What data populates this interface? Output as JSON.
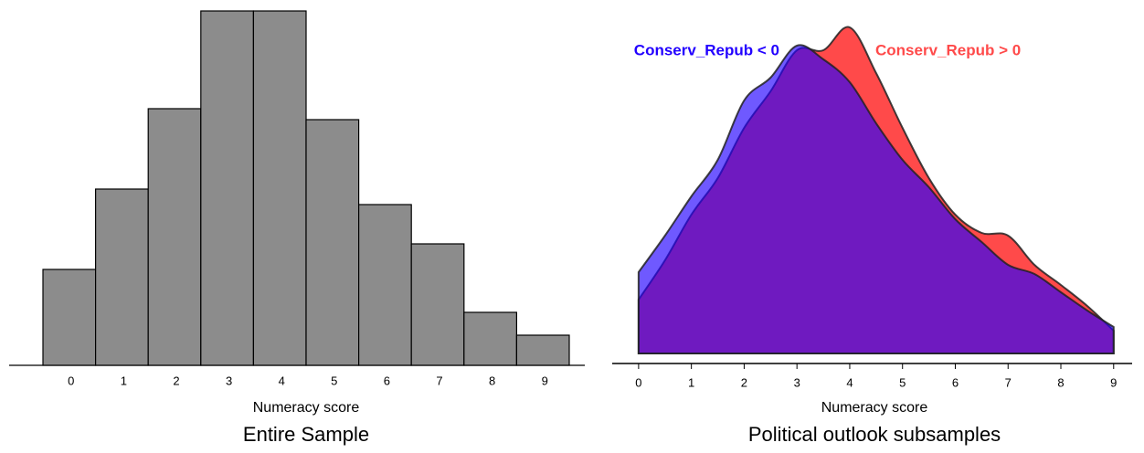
{
  "chart_data": [
    {
      "type": "bar",
      "title": "Entire Sample",
      "x_label": "Numeracy score",
      "categories": [
        "0",
        "1",
        "2",
        "3",
        "4",
        "5",
        "6",
        "7",
        "8",
        "9"
      ],
      "values": [
        105,
        193,
        281,
        388,
        388,
        269,
        176,
        133,
        58,
        33
      ],
      "color": "#8c8c8c",
      "ylim": [
        0,
        388
      ]
    },
    {
      "type": "area",
      "title": "Political outlook subsamples",
      "x_label": "Numeracy score",
      "x": [
        0,
        0.5,
        1,
        1.5,
        2,
        2.5,
        3,
        3.5,
        4,
        4.5,
        5,
        5.5,
        6,
        6.5,
        7,
        7.5,
        8,
        8.5,
        9
      ],
      "series": [
        {
          "name": "Conserv_Repub > 0",
          "color": "#ff4a4a",
          "values": [
            59,
            102,
            152,
            192,
            247,
            287,
            332,
            332,
            357,
            307,
            247,
            192,
            152,
            132,
            129,
            97,
            75,
            52,
            25
          ]
        },
        {
          "name": "Conserv_Repub < 0",
          "color": "#2200ff",
          "values": [
            89,
            129,
            172,
            212,
            277,
            302,
            337,
            322,
            297,
            252,
            212,
            182,
            147,
            122,
            97,
            87,
            67,
            47,
            29
          ]
        }
      ],
      "xlim": [
        -0.5,
        9.35
      ],
      "xticks": [
        0,
        1,
        2,
        3,
        4,
        5,
        6,
        7,
        8,
        9
      ],
      "ylim": [
        0,
        357
      ]
    }
  ]
}
